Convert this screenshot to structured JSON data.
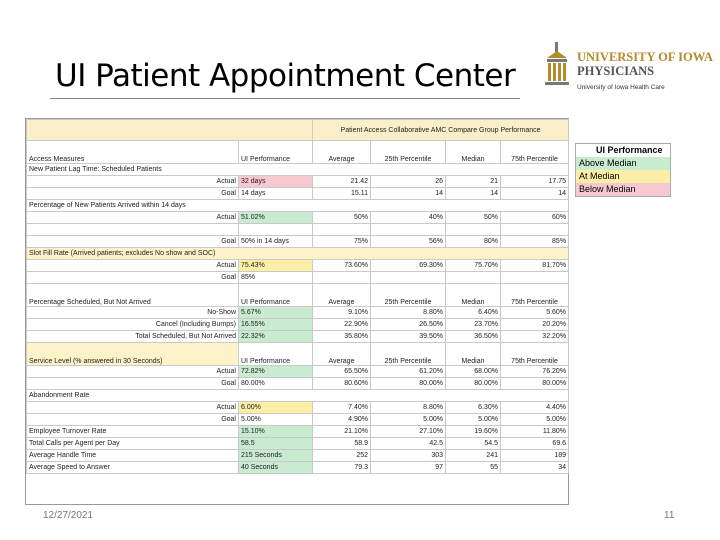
{
  "header": {
    "title": "UI Patient Appointment Center"
  },
  "logo": {
    "line1": "UNIVERSITY OF IOWA",
    "line2": "PHYSICIANS",
    "line3": "University of Iowa Health Care"
  },
  "table": {
    "group_header": "Patient Access Collaborative AMC Compare Group Performance",
    "columns": 6,
    "rows": [
      {
        "kind": "head",
        "cells": [
          "Access Measures",
          "UI Performance",
          "Average",
          "25th Percentile",
          "Median",
          "75th Percentile"
        ]
      },
      {
        "kind": "section",
        "cells": [
          "New Patient Lag Time: Scheduled Patients"
        ]
      },
      {
        "kind": "sub",
        "ui_color": "#f6c9d0",
        "cells": [
          "Actual",
          "32 days",
          "21.42",
          "26",
          "21",
          "17.75"
        ]
      },
      {
        "kind": "sub",
        "cells": [
          "Goal",
          "14 days",
          "15.11",
          "14",
          "14",
          "14"
        ]
      },
      {
        "kind": "section",
        "cells": [
          "Percentage of New Patients Arrived within 14 days"
        ]
      },
      {
        "kind": "sub",
        "ui_color": "#c9ebcf",
        "cells": [
          "Actual",
          "51.02%",
          "50%",
          "40%",
          "50%",
          "60%"
        ]
      },
      {
        "kind": "blank",
        "cells": []
      },
      {
        "kind": "sub",
        "cells": [
          "Goal",
          "50% in 14 days",
          "75%",
          "56%",
          "80%",
          "85%"
        ]
      },
      {
        "kind": "section-y",
        "cells": [
          "Slot Fill Rate (Arrived patients; excludes No show and SOC)"
        ]
      },
      {
        "kind": "sub",
        "ui_color": "#fbeea6",
        "cells": [
          "Actual",
          "75.43%",
          "73.60%",
          "69.30%",
          "75.70%",
          "81.70%"
        ]
      },
      {
        "kind": "sub",
        "cells": [
          "Goal",
          "85%"
        ]
      },
      {
        "kind": "head",
        "cells": [
          "Percentage Scheduled, But Not Arrived",
          "UI Performance",
          "Average",
          "25th Percentile",
          "Median",
          "75th Percentile"
        ]
      },
      {
        "kind": "sub",
        "ui_color": "#c9ebcf",
        "cells": [
          "No-Show",
          "5.67%",
          "9.10%",
          "8.80%",
          "6.40%",
          "5.60%"
        ]
      },
      {
        "kind": "sub",
        "ui_color": "#c9ebcf",
        "cells": [
          "Cancel (Including Bumps)",
          "16.55%",
          "22.90%",
          "26.50%",
          "23.70%",
          "20.20%"
        ]
      },
      {
        "kind": "sub",
        "ui_color": "#c9ebcf",
        "cells": [
          "Total Scheduled, But Not Arrived",
          "22.32%",
          "35.80%",
          "39.50%",
          "36.50%",
          "32.20%"
        ]
      },
      {
        "kind": "head-y",
        "cells": [
          "Service Level (% answered in 30 Seconds)",
          "UI Performance",
          "Average",
          "25th Percentile",
          "Median",
          "75th Percentile"
        ]
      },
      {
        "kind": "sub",
        "ui_color": "#c9ebcf",
        "cells": [
          "Actual",
          "72.82%",
          "65.50%",
          "61.20%",
          "68.00%",
          "76.20%"
        ]
      },
      {
        "kind": "sub",
        "cells": [
          "Goal",
          "80.00%",
          "80.60%",
          "80.00%",
          "80.00%",
          "80.00%"
        ]
      },
      {
        "kind": "section",
        "cells": [
          "Abandonment Rate"
        ]
      },
      {
        "kind": "sub",
        "ui_color": "#fbeea6",
        "cells": [
          "Actual",
          "6.00%",
          "7.40%",
          "8.80%",
          "6.30%",
          "4.40%"
        ]
      },
      {
        "kind": "sub",
        "cells": [
          "Goal",
          "5.00%",
          "4.90%",
          "5.00%",
          "5.00%",
          "5.00%"
        ]
      },
      {
        "kind": "left",
        "ui_color": "#c9ebcf",
        "cells": [
          "Employee Turnover Rate",
          "15.10%",
          "21.10%",
          "27.10%",
          "19.60%",
          "11.80%"
        ]
      },
      {
        "kind": "left",
        "ui_color": "#c9ebcf",
        "cells": [
          "Total Calls per Agent per Day",
          "58.5",
          "58.9",
          "42.5",
          "54.5",
          "69.6"
        ]
      },
      {
        "kind": "left",
        "ui_color": "#c9ebcf",
        "cells": [
          "Average Handle Time",
          "215 Seconds",
          "252",
          "303",
          "241",
          "189"
        ]
      },
      {
        "kind": "left",
        "ui_color": "#c9ebcf",
        "cells": [
          "Average Speed to Answer",
          "40 Seconds",
          "79.3",
          "97",
          "55",
          "34"
        ]
      }
    ]
  },
  "legend": {
    "title": "UI Performance",
    "items": [
      {
        "label": "Above Median",
        "color": "#c9ebcf"
      },
      {
        "label": "At Median",
        "color": "#fbeea6"
      },
      {
        "label": "Below Median",
        "color": "#f6c9d0"
      }
    ]
  },
  "footer": {
    "date": "12/27/2021",
    "page": "11"
  }
}
